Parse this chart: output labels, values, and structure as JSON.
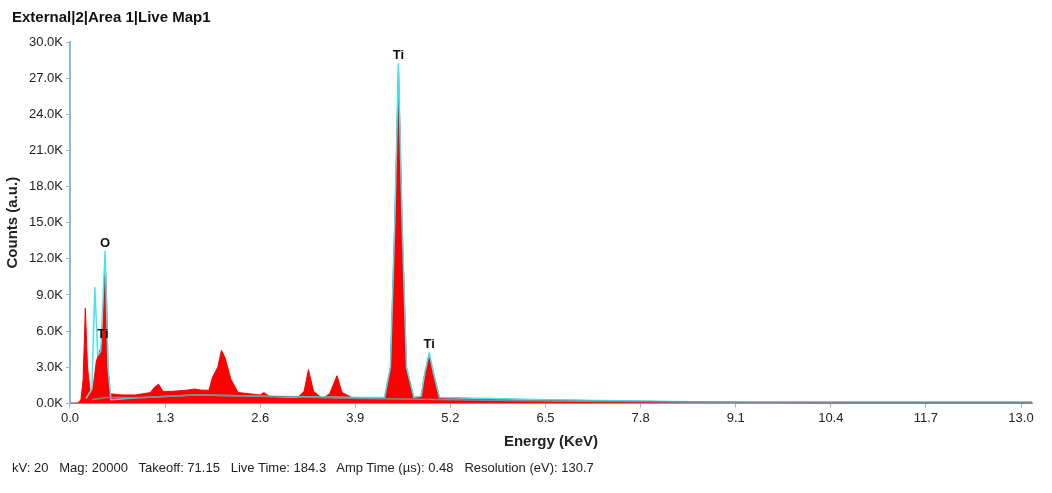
{
  "chart_data": {
    "type": "area",
    "title": "External|2|Area 1|Live Map1",
    "xlabel": "Energy (KeV)",
    "ylabel": "Counts (a.u.)",
    "xlim": [
      0,
      13.15
    ],
    "ylim": [
      0,
      30000
    ],
    "xticks": [
      {
        "value": 0,
        "label": "0.0"
      },
      1.3,
      2.6,
      3.9,
      5.2,
      6.5,
      7.8,
      9.1,
      10.4,
      11.7,
      {
        "value": 13,
        "label": "13.0"
      }
    ],
    "yticks": [
      {
        "value": 0,
        "label": "0.0K"
      },
      {
        "value": 3000,
        "label": "3.0K"
      },
      {
        "value": 6000,
        "label": "6.0K"
      },
      {
        "value": 9000,
        "label": "9.0K"
      },
      {
        "value": 12000,
        "label": "12.0K"
      },
      {
        "value": 15000,
        "label": "15.0K"
      },
      {
        "value": 18000,
        "label": "18.0K"
      },
      {
        "value": 21000,
        "label": "21.0K"
      },
      {
        "value": 24000,
        "label": "24.0K"
      },
      {
        "value": 27000,
        "label": "27.0K"
      },
      {
        "value": 30000,
        "label": "30.0K"
      }
    ],
    "grid": false,
    "legend": false,
    "marker": "none",
    "line_style": "solid",
    "series": [
      {
        "color": "#ff0000",
        "x": [
          0,
          0.1,
          0.15,
          0.18,
          0.21,
          0.24,
          0.28,
          0.32,
          0.36,
          0.4,
          0.44,
          0.46,
          0.48,
          0.5,
          0.52,
          0.55,
          0.7,
          0.9,
          1.1,
          1.15,
          1.21,
          1.27,
          1.4,
          1.6,
          1.7,
          1.8,
          1.9,
          1.95,
          2.02,
          2.07,
          2.12,
          2.2,
          2.3,
          2.6,
          2.65,
          2.75,
          3.1,
          3.2,
          3.26,
          3.33,
          3.45,
          3.55,
          3.65,
          3.72,
          3.85,
          4,
          4.3,
          4.38,
          4.44,
          4.49,
          4.54,
          4.6,
          4.7,
          4.8,
          4.85,
          4.91,
          4.97,
          5.05,
          5.5,
          6.5,
          7.5,
          9,
          11,
          13.15
        ],
        "values": [
          0,
          0,
          300,
          2000,
          7900,
          3000,
          800,
          1500,
          3500,
          4200,
          5000,
          8000,
          11800,
          9000,
          3000,
          800,
          700,
          700,
          900,
          1300,
          1600,
          1000,
          1000,
          1100,
          1200,
          1100,
          1100,
          2200,
          3000,
          4400,
          3800,
          2000,
          900,
          700,
          900,
          500,
          400,
          1000,
          2800,
          1000,
          400,
          800,
          2300,
          900,
          500,
          400,
          500,
          3000,
          15000,
          27900,
          15000,
          3000,
          500,
          600,
          2500,
          4100,
          2500,
          500,
          400,
          300,
          200,
          100,
          0,
          0
        ]
      },
      {
        "type": "line",
        "color": "#3ee6f2",
        "x": [
          0.22,
          0.3,
          0.34,
          0.38,
          0.42,
          0.48,
          0.52,
          0.56,
          1,
          1.7,
          2.6,
          4,
          4.3,
          4.38,
          4.44,
          4.49,
          4.54,
          4.6,
          4.7,
          4.8,
          4.85,
          4.91,
          4.97,
          5.05,
          6.5,
          9,
          13.15
        ],
        "values": [
          400,
          1200,
          9600,
          4000,
          4300,
          12600,
          3000,
          300,
          500,
          700,
          600,
          500,
          500,
          3000,
          15000,
          28200,
          15000,
          3000,
          500,
          600,
          2500,
          4200,
          2500,
          500,
          300,
          100,
          100
        ]
      },
      {
        "type": "line",
        "color": "#7f8c8d",
        "x": [
          0.3,
          0.5,
          1,
          1.7,
          2.6,
          4,
          6.5,
          9,
          13.15
        ],
        "values": [
          300,
          500,
          500,
          700,
          600,
          400,
          200,
          100,
          100
        ]
      }
    ],
    "annotations": [
      {
        "text": "O",
        "x": 0.48,
        "y": 12600
      },
      {
        "text": "Ti",
        "x": 0.45,
        "y": 5000
      },
      {
        "text": "Ti",
        "x": 4.49,
        "y": 28200
      },
      {
        "text": "Ti",
        "x": 4.91,
        "y": 4200
      },
      "kV: 20   Mag: 20000   Takeoff: 71.15   Live Time: 184.3   Amp Time (µs): 0.48   Resolution (eV): 130.7"
    ]
  }
}
